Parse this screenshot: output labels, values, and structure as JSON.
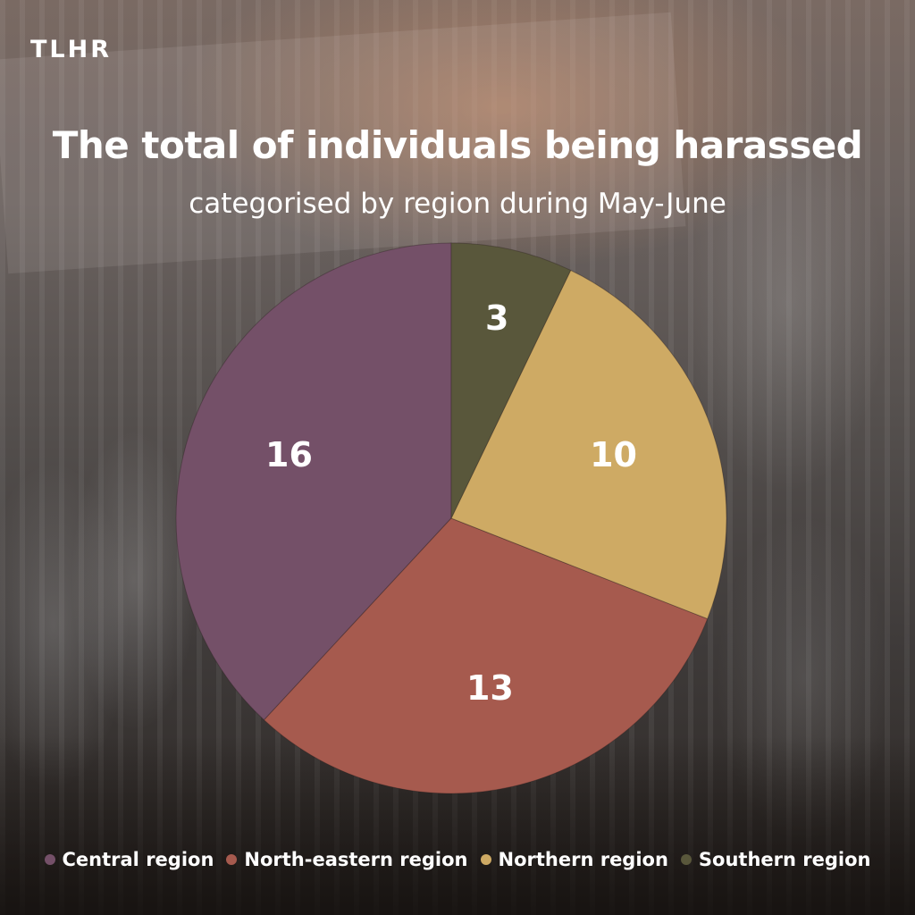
{
  "brand": {
    "logo_text": "TLHR"
  },
  "header": {
    "title": "The total of individuals being harassed",
    "subtitle": "categorised by region during May-June"
  },
  "chart_data": {
    "type": "pie",
    "title": "The total of individuals being harassed",
    "subtitle": "categorised by region during May-June",
    "start_angle_deg": 0,
    "direction": "counterclockwise",
    "legend_position": "bottom",
    "slices": [
      {
        "name": "Central region",
        "value": 16,
        "color": "#745068"
      },
      {
        "name": "North-eastern region",
        "value": 13,
        "color": "#a65a4e"
      },
      {
        "name": "Northern region",
        "value": 10,
        "color": "#ceaa64"
      },
      {
        "name": "Southern region",
        "value": 3,
        "color": "#59573b"
      }
    ]
  },
  "colors": {
    "text": "#ffffff"
  }
}
